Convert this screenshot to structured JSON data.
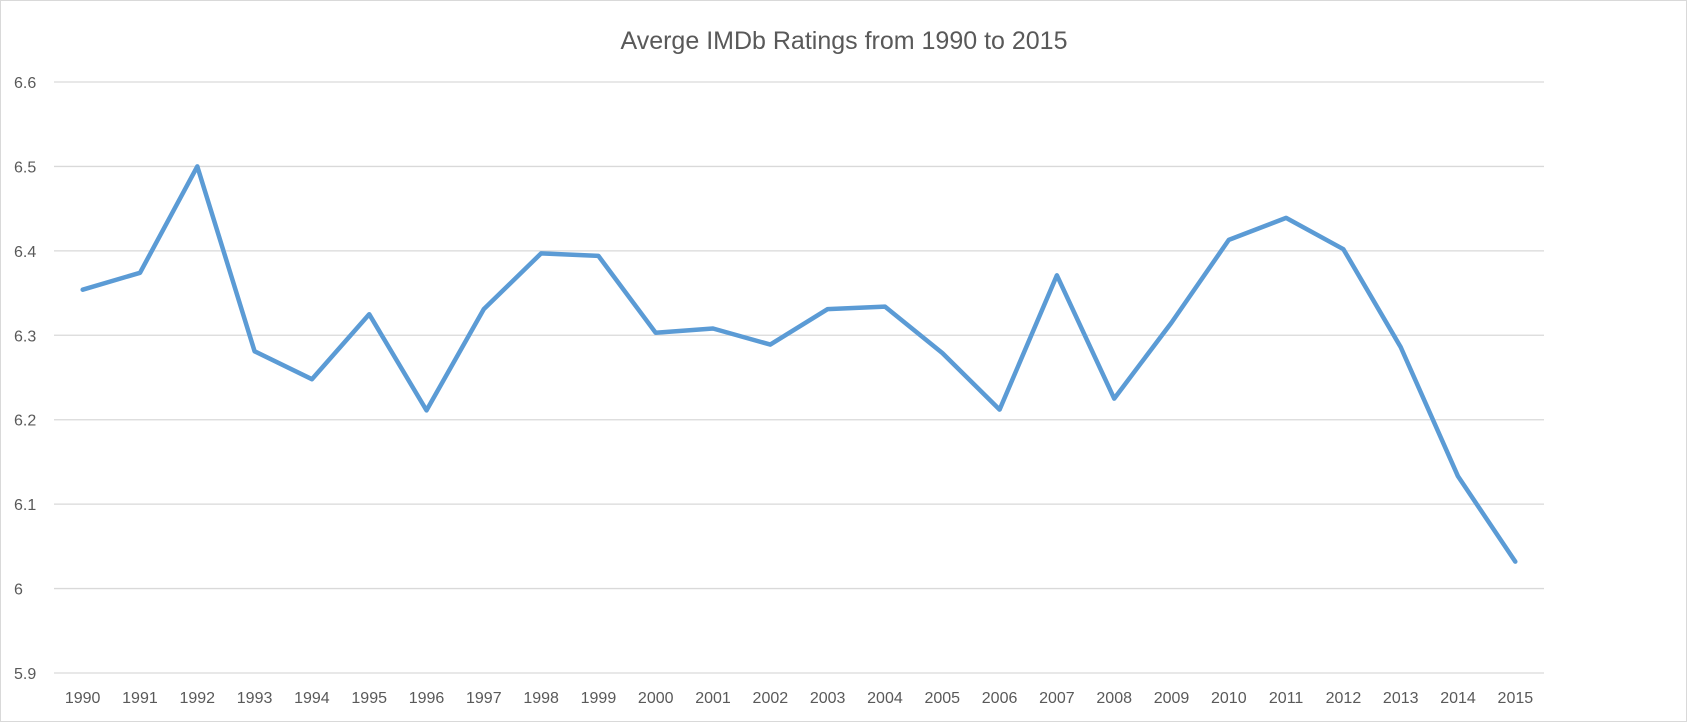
{
  "chart_data": {
    "type": "line",
    "title": "Averge IMDb Ratings from 1990 to 2015",
    "xlabel": "",
    "ylabel": "",
    "ylim": [
      5.9,
      6.6
    ],
    "yticks": [
      "5.9",
      "6",
      "6.1",
      "6.2",
      "6.3",
      "6.4",
      "6.5",
      "6.6"
    ],
    "ytick_values": [
      5.9,
      6.0,
      6.1,
      6.2,
      6.3,
      6.4,
      6.5,
      6.6
    ],
    "grid": true,
    "legend": "none",
    "categories": [
      "1990",
      "1991",
      "1992",
      "1993",
      "1994",
      "1995",
      "1996",
      "1997",
      "1998",
      "1999",
      "2000",
      "2001",
      "2002",
      "2003",
      "2004",
      "2005",
      "2006",
      "2007",
      "2008",
      "2009",
      "2010",
      "2011",
      "2012",
      "2013",
      "2014",
      "2015"
    ],
    "series": [
      {
        "color": "#5b9bd5",
        "values": [
          6.354,
          6.374,
          6.5,
          6.281,
          6.248,
          6.325,
          6.211,
          6.331,
          6.397,
          6.394,
          6.303,
          6.308,
          6.289,
          6.331,
          6.334,
          6.279,
          6.212,
          6.371,
          6.225,
          6.315,
          6.413,
          6.439,
          6.402,
          6.286,
          6.133,
          6.032
        ]
      }
    ],
    "colors": {
      "line": "#5b9bd5",
      "grid": "#d9d9d9",
      "text": "#595959"
    }
  }
}
